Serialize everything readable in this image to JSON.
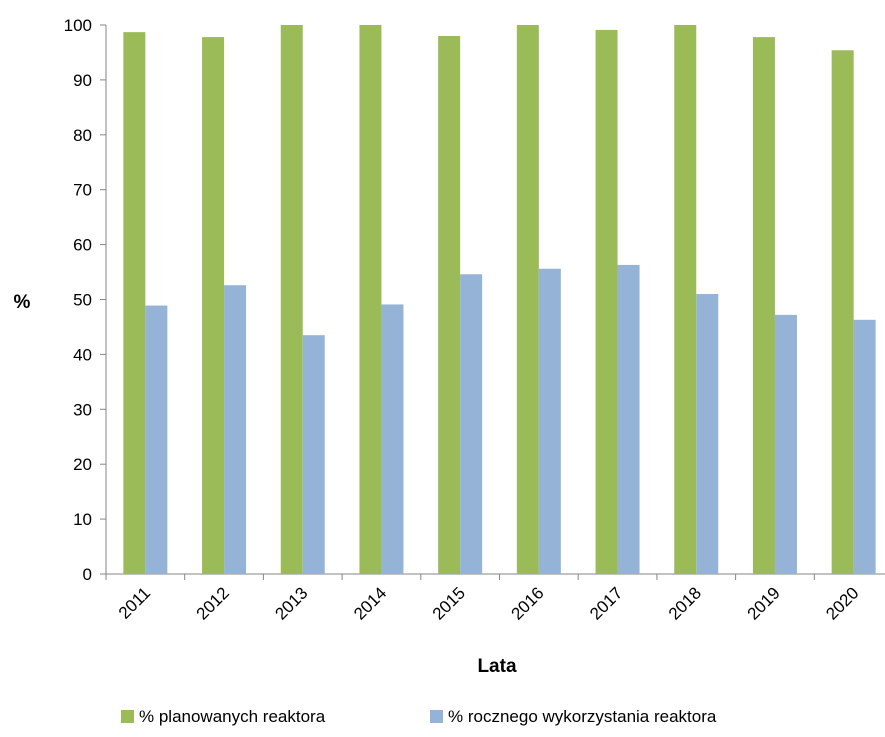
{
  "chart_data": {
    "type": "bar",
    "title": "",
    "xlabel": "Lata",
    "ylabel": "%",
    "ylim": [
      0,
      100
    ],
    "yticks": [
      0,
      10,
      20,
      30,
      40,
      50,
      60,
      70,
      80,
      90,
      100
    ],
    "grid": false,
    "legend_position": "bottom",
    "categories": [
      "2011",
      "2012",
      "2013",
      "2014",
      "2015",
      "2016",
      "2017",
      "2018",
      "2019",
      "2020"
    ],
    "series": [
      {
        "name": "% planowanych reaktora",
        "color": "#9BBB59",
        "values": [
          98.7,
          97.8,
          100,
          100,
          98.0,
          100,
          99.1,
          100,
          97.8,
          95.4
        ]
      },
      {
        "name": "% rocznego wykorzystania reaktora",
        "color": "#95B3D7",
        "values": [
          48.9,
          52.6,
          43.5,
          49.1,
          54.6,
          55.6,
          56.3,
          51.0,
          47.2,
          46.3
        ]
      }
    ]
  }
}
